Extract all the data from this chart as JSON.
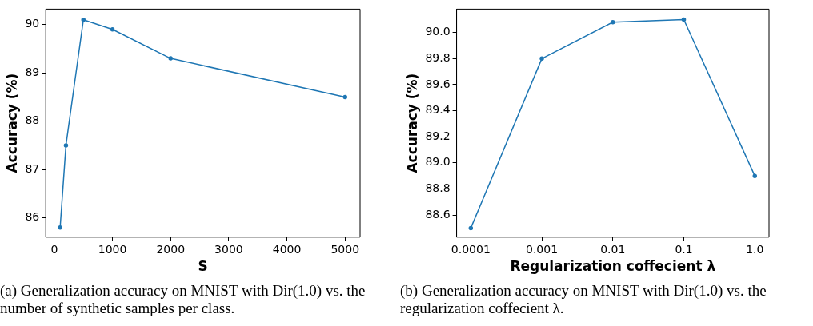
{
  "chart_data": [
    {
      "type": "line",
      "xlabel": "S",
      "ylabel": "Accuracy (%)",
      "x": [
        100,
        200,
        500,
        1000,
        2000,
        5000
      ],
      "series": [
        {
          "color": "#1f77b4",
          "values": [
            85.8,
            87.5,
            90.1,
            89.9,
            89.3,
            88.5
          ]
        }
      ],
      "xlim": [
        -147,
        5258
      ],
      "xticks": [
        0,
        1000,
        2000,
        3000,
        4000,
        5000
      ],
      "ylim": [
        85.6,
        90.32
      ],
      "yticks": [
        86,
        87,
        88,
        89,
        90
      ],
      "grid": false,
      "legend": false,
      "marker": "circle",
      "line_style": "solid",
      "annotations": [
        "(a) Generalization accuracy on MNIST with Dir(1.0) vs. the number of synthetic samples per class."
      ]
    },
    {
      "type": "line",
      "xlabel": "Regularization coffecient λ",
      "ylabel": "Accuracy (%)",
      "categories": [
        "0.0001",
        "0.001",
        "0.01",
        "0.1",
        "1.0"
      ],
      "series": [
        {
          "color": "#1f77b4",
          "values": [
            88.5,
            89.8,
            90.08,
            90.1,
            88.9
          ]
        }
      ],
      "ylim": [
        88.43,
        90.18
      ],
      "yticks": [
        88.6,
        88.8,
        {
          "value": 89,
          "label": "89.0"
        },
        89.2,
        89.4,
        89.6,
        89.8,
        {
          "value": 90,
          "label": "90.0"
        }
      ],
      "grid": false,
      "legend": false,
      "marker": "circle",
      "line_style": "solid",
      "annotations": [
        "(b) Generalization accuracy on MNIST with Dir(1.0) vs. the regularization coffecient λ."
      ]
    }
  ]
}
